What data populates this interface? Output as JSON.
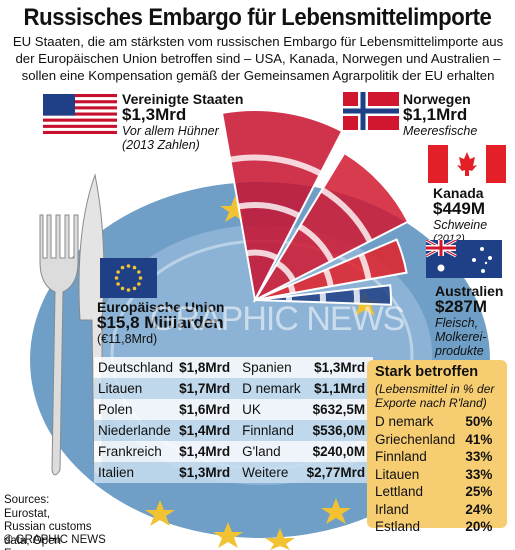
{
  "title": "Russisches Embargo für Lebensmittelimporte",
  "subtitle": "EU Staaten, die am stärksten vom russischen Embargo für Lebensmittelimporte aus der Europäischen Union betroffen sind – USA, Kanada, Norwegen und Australien – sollen eine Kompensation gemäß der Gemeinsamen Agrarpolitik  der EU erhalten",
  "chart_data": [
    {
      "type": "pie",
      "title": "",
      "slices": [
        {
          "name": "Vereinigte Staaten",
          "value_label": "$1,3Mrd",
          "value": 1300,
          "note": "Vor allem Hühner",
          "note2": "(2013 Zahlen)",
          "flag": "us-flag"
        },
        {
          "name": "Norwegen",
          "value_label": "$1,1Mrd",
          "value": 1100,
          "note": "Meeresfische",
          "note2": "",
          "flag": "norway-flag"
        },
        {
          "name": "Kanada",
          "value_label": "$449M",
          "value": 449,
          "note": "Schweine",
          "note2": "(2012)",
          "flag": "canada-flag"
        },
        {
          "name": "Australien",
          "value_label": "$287M",
          "value": 287,
          "note": "Fleisch, Molkerei-produkte",
          "note2": "",
          "flag": "australia-flag"
        }
      ],
      "colors": {
        "us": "#c8102e",
        "norway": "#d1172f",
        "canada": "#e32027",
        "australia": "#1f3f86",
        "plate": "#6f9fc6"
      }
    },
    {
      "type": "table",
      "title": "Europäische Union",
      "total": "$15,8 Milliarden",
      "total_alt": "(€11,8Mrd)",
      "rows": [
        [
          "Deutschland",
          "$1,8Mrd",
          "Spanien",
          "$1,3Mrd"
        ],
        [
          "Litauen",
          "$1,7Mrd",
          "D nemark",
          "$1,1Mrd"
        ],
        [
          "Polen",
          "$1,6Mrd",
          "UK",
          "$632,5M"
        ],
        [
          "Niederlande",
          "$1,4Mrd",
          "Finnland",
          "$536,0M"
        ],
        [
          "Frankreich",
          "$1,4Mrd",
          "G'land",
          "$240,0M"
        ],
        [
          "Italien",
          "$1,3Mrd",
          "Weitere",
          "$2,77Mrd"
        ]
      ]
    },
    {
      "type": "table",
      "title": "Stark betroffen",
      "note": "(Lebensmittel in % der Exporte nach R'land)",
      "rows": [
        [
          "D nemark",
          "50%"
        ],
        [
          "Griechenland",
          "41%"
        ],
        [
          "Finnland",
          "33%"
        ],
        [
          "Litauen",
          "33%"
        ],
        [
          "Lettland",
          "25%"
        ],
        [
          "Irland",
          "24%"
        ],
        [
          "Estland",
          "20%"
        ]
      ]
    }
  ],
  "sources": "Sources: Eurostat, Russian customs data, Open Europe",
  "credit": "© GRAPHIC NEWS",
  "watermark": "GRAPHIC NEWS"
}
